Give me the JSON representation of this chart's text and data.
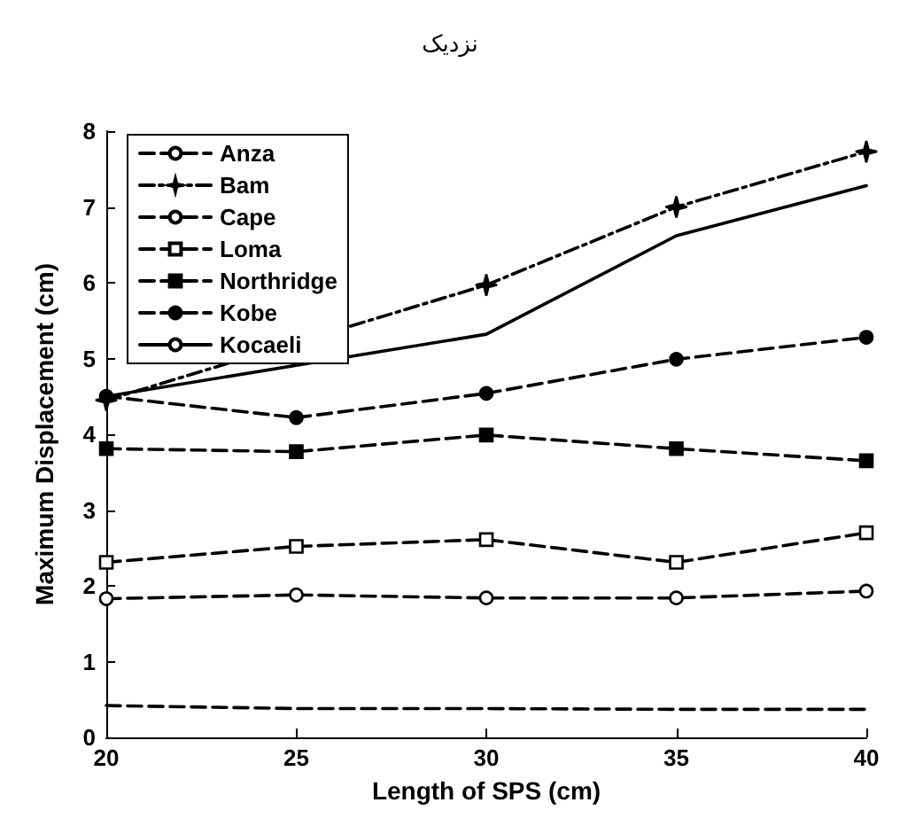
{
  "chart_data": {
    "type": "line",
    "title": "نزدیک",
    "xlabel": "Length of SPS (cm)",
    "ylabel": "Maximum Displacement (cm)",
    "x": [
      20,
      25,
      30,
      35,
      40
    ],
    "xlim": [
      20,
      40
    ],
    "xticks": [
      20,
      25,
      30,
      35,
      40
    ],
    "ylim": [
      0,
      8
    ],
    "yticks": [
      0,
      1,
      2,
      3,
      4,
      5,
      6,
      7,
      8
    ],
    "grid": false,
    "legend": "top left",
    "series": [
      {
        "name": "Anza",
        "color": "#000000",
        "line_style": "dashed",
        "marker": "none",
        "values": [
          0.42,
          0.38,
          0.38,
          0.37,
          0.37
        ]
      },
      {
        "name": "Bam",
        "color": "#000000",
        "line_style": "dashdot",
        "marker": "star",
        "values": [
          4.45,
          null,
          5.97,
          7.0,
          7.73
        ]
      },
      {
        "name": "Cape",
        "color": "#000000",
        "line_style": "dashed",
        "marker": "circle-open",
        "values": [
          1.83,
          1.88,
          1.84,
          1.84,
          1.93
        ]
      },
      {
        "name": "Loma",
        "color": "#000000",
        "line_style": "dashed",
        "marker": "square-open",
        "values": [
          2.31,
          2.52,
          2.61,
          2.31,
          2.7
        ]
      },
      {
        "name": "Northridge",
        "color": "#000000",
        "line_style": "dashed",
        "marker": "square",
        "values": [
          3.81,
          3.77,
          3.99,
          3.81,
          3.65
        ]
      },
      {
        "name": "Kobe",
        "color": "#000000",
        "line_style": "dashed",
        "marker": "circle",
        "values": [
          4.5,
          4.22,
          4.54,
          4.99,
          5.28
        ]
      },
      {
        "name": "Kocaeli",
        "color": "#000000",
        "line_style": "solid",
        "marker": "none",
        "values": [
          4.5,
          null,
          5.32,
          6.62,
          7.28
        ]
      }
    ]
  }
}
